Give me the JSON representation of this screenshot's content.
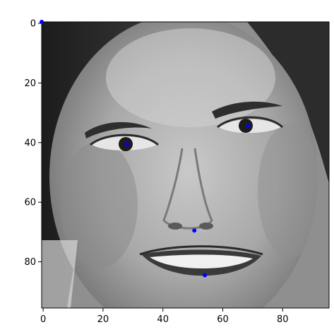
{
  "chart_data": {
    "type": "scatter",
    "background": "grayscale face photograph",
    "xlim": [
      -0.5,
      95.5
    ],
    "ylim": [
      95.5,
      -0.5
    ],
    "x_ticks": [
      0,
      20,
      40,
      60,
      80
    ],
    "y_ticks": [
      0,
      20,
      40,
      60,
      80
    ],
    "grid": false,
    "series": [
      {
        "marker_color": "#0000ff",
        "points": [
          {
            "x": -0.5,
            "y": -0.5
          },
          {
            "x": 28,
            "y": 40.5
          },
          {
            "x": 68.5,
            "y": 34.5
          },
          {
            "x": 50.5,
            "y": 69.5
          },
          {
            "x": 54,
            "y": 84.5
          }
        ]
      }
    ]
  }
}
